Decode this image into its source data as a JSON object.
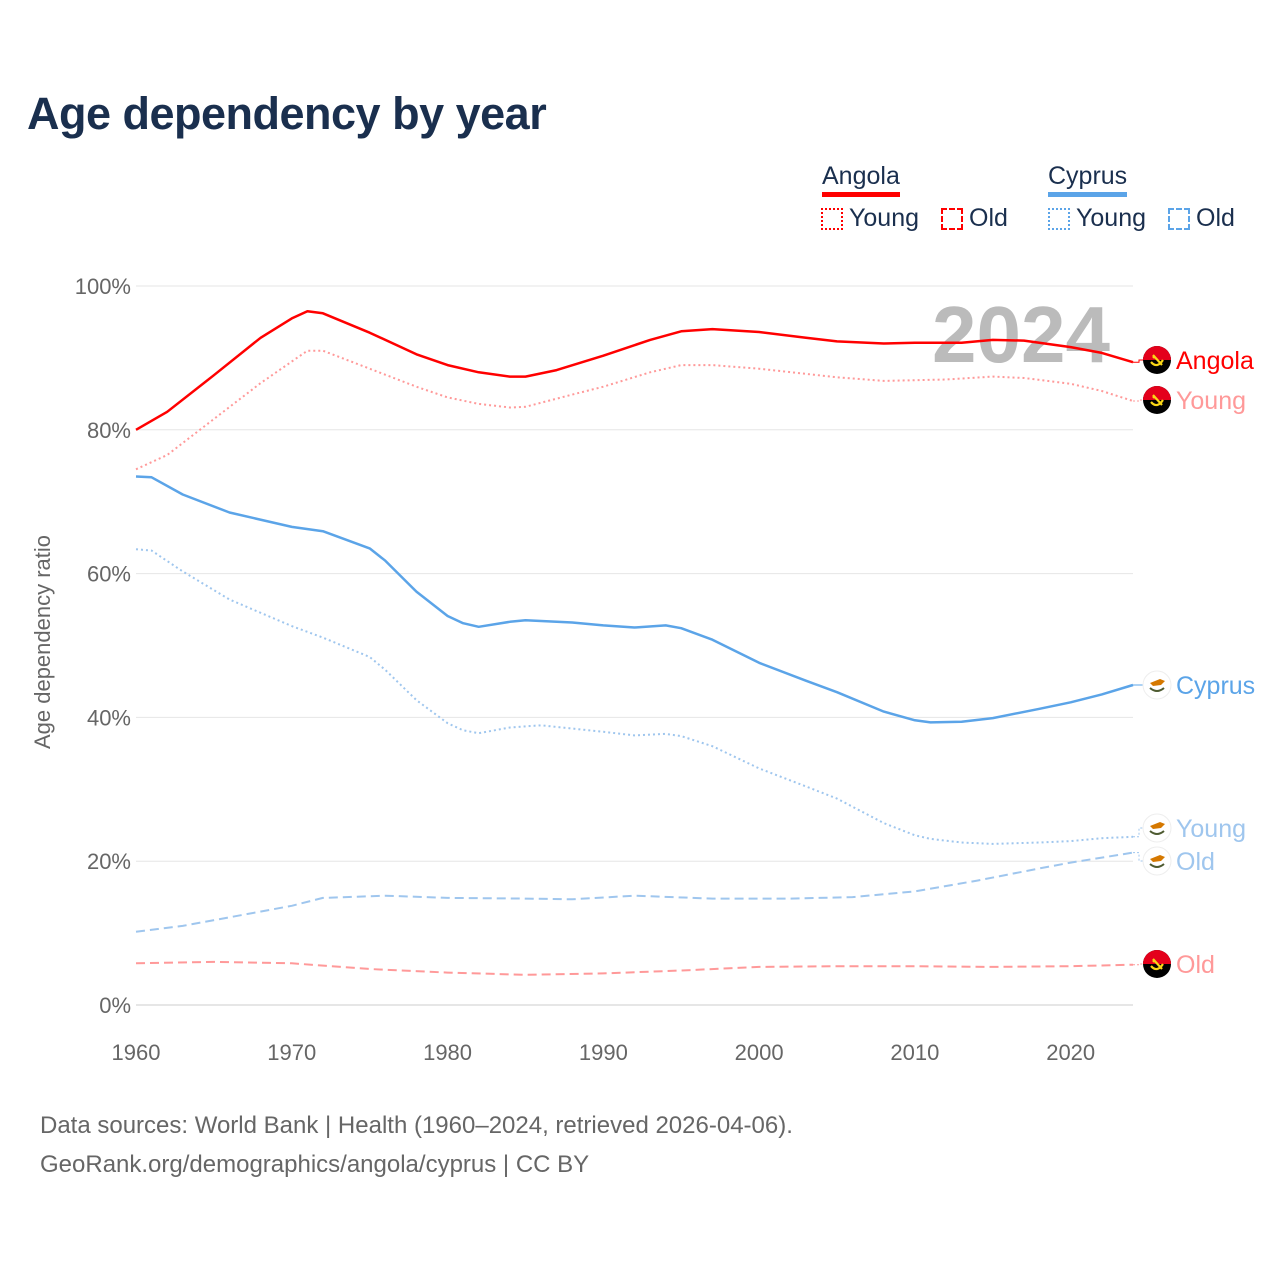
{
  "title": "Age dependency by year",
  "legend": {
    "countries": [
      {
        "name": "Angola",
        "color": "#ff0000"
      },
      {
        "name": "Cyprus",
        "color": "#5ba4e8"
      }
    ],
    "young_label": "Young",
    "old_label": "Old"
  },
  "year_watermark": "2024",
  "footer": {
    "line1": "Data sources: World Bank | Health (1960–2024, retrieved 2026-04-06).",
    "line2": "GeoRank.org/demographics/angola/cyprus | CC BY"
  },
  "chart_data": {
    "type": "line",
    "title": "Age dependency by year",
    "xlabel": "",
    "ylabel": "Age dependency ratio",
    "xlim": [
      1960,
      2024
    ],
    "ylim": [
      0,
      100
    ],
    "x_ticks": [
      "1960",
      "1970",
      "1980",
      "1990",
      "2000",
      "2010",
      "2020"
    ],
    "y_ticks": [
      "0%",
      "20%",
      "40%",
      "60%",
      "80%",
      "100%"
    ],
    "grid": true,
    "legend_position": "top-right",
    "series": [
      {
        "name": "Angola",
        "label": "Angola",
        "country": "Angola",
        "kind": "total",
        "color": "#ff0000",
        "style": "solid",
        "x": [
          1960,
          1962,
          1965,
          1968,
          1970,
          1971,
          1972,
          1975,
          1978,
          1980,
          1982,
          1984,
          1985,
          1987,
          1990,
          1993,
          1995,
          1997,
          2000,
          2003,
          2005,
          2008,
          2010,
          2013,
          2015,
          2017,
          2020,
          2022,
          2024
        ],
        "y": [
          80,
          82.5,
          87.6,
          92.8,
          95.5,
          96.5,
          96.2,
          93.5,
          90.5,
          89,
          88,
          87.4,
          87.4,
          88.3,
          90.3,
          92.5,
          93.7,
          94,
          93.6,
          92.8,
          92.3,
          92,
          92.1,
          92.1,
          92.5,
          92.4,
          91.5,
          90.7,
          89.4
        ]
      },
      {
        "name": "Angola Young",
        "label": "Young",
        "country": "Angola",
        "kind": "young",
        "color": "#ff9999",
        "style": "dotted",
        "x": [
          1960,
          1962,
          1965,
          1968,
          1970,
          1971,
          1972,
          1975,
          1978,
          1980,
          1982,
          1984,
          1985,
          1988,
          1990,
          1993,
          1995,
          1997,
          2000,
          2005,
          2008,
          2012,
          2015,
          2017,
          2020,
          2022,
          2024
        ],
        "y": [
          74.5,
          76.5,
          81.5,
          86.5,
          89.5,
          91,
          91,
          88.5,
          86,
          84.5,
          83.6,
          83.1,
          83.2,
          84.9,
          86,
          88,
          89,
          89,
          88.5,
          87.3,
          86.8,
          87,
          87.4,
          87.2,
          86.4,
          85.4,
          84
        ]
      },
      {
        "name": "Angola Old",
        "label": "Old",
        "country": "Angola",
        "kind": "old",
        "color": "#ff9999",
        "style": "dashed",
        "x": [
          1960,
          1965,
          1970,
          1975,
          1980,
          1985,
          1990,
          1995,
          2000,
          2005,
          2010,
          2015,
          2020,
          2024
        ],
        "y": [
          5.8,
          6,
          5.8,
          5,
          4.5,
          4.2,
          4.4,
          4.8,
          5.3,
          5.4,
          5.4,
          5.3,
          5.4,
          5.6
        ]
      },
      {
        "name": "Cyprus",
        "label": "Cyprus",
        "country": "Cyprus",
        "kind": "total",
        "color": "#5ba4e8",
        "style": "solid",
        "x": [
          1960,
          1961,
          1963,
          1966,
          1970,
          1972,
          1975,
          1976,
          1978,
          1980,
          1981,
          1982,
          1984,
          1985,
          1988,
          1990,
          1992,
          1994,
          1995,
          1997,
          2000,
          2003,
          2005,
          2008,
          2010,
          2011,
          2013,
          2015,
          2018,
          2020,
          2022,
          2024
        ],
        "y": [
          73.5,
          73.4,
          71,
          68.5,
          66.5,
          65.9,
          63.5,
          61.8,
          57.5,
          54.1,
          53.1,
          52.6,
          53.3,
          53.5,
          53.2,
          52.8,
          52.5,
          52.8,
          52.4,
          50.8,
          47.6,
          45.1,
          43.5,
          40.8,
          39.6,
          39.3,
          39.4,
          39.9,
          41.2,
          42.1,
          43.2,
          44.5
        ]
      },
      {
        "name": "Cyprus Young",
        "label": "Young",
        "country": "Cyprus",
        "kind": "young",
        "color": "#9fc6ee",
        "style": "dotted",
        "x": [
          1960,
          1961,
          1963,
          1966,
          1970,
          1972,
          1975,
          1976,
          1978,
          1980,
          1981,
          1982,
          1984,
          1986,
          1990,
          1992,
          1994,
          1995,
          1997,
          2000,
          2003,
          2005,
          2008,
          2010,
          2011,
          2013,
          2015,
          2018,
          2020,
          2022,
          2024
        ],
        "y": [
          63.4,
          63.2,
          60.3,
          56.4,
          52.7,
          51.1,
          48.4,
          46.6,
          42.4,
          39.2,
          38.2,
          37.8,
          38.6,
          38.9,
          38,
          37.5,
          37.7,
          37.4,
          36,
          32.9,
          30.4,
          28.7,
          25.3,
          23.6,
          23.1,
          22.6,
          22.4,
          22.6,
          22.8,
          23.2,
          23.4
        ]
      },
      {
        "name": "Cyprus Old",
        "label": "Old",
        "country": "Cyprus",
        "kind": "old",
        "color": "#9fc6ee",
        "style": "dashed",
        "x": [
          1960,
          1963,
          1966,
          1970,
          1972,
          1976,
          1980,
          1985,
          1988,
          1992,
          1997,
          2002,
          2006,
          2010,
          2014,
          2018,
          2020,
          2024
        ],
        "y": [
          10.2,
          11,
          12.2,
          13.8,
          14.9,
          15.2,
          14.9,
          14.8,
          14.7,
          15.2,
          14.8,
          14.8,
          15,
          15.8,
          17.3,
          19,
          19.8,
          21.2
        ]
      }
    ]
  }
}
